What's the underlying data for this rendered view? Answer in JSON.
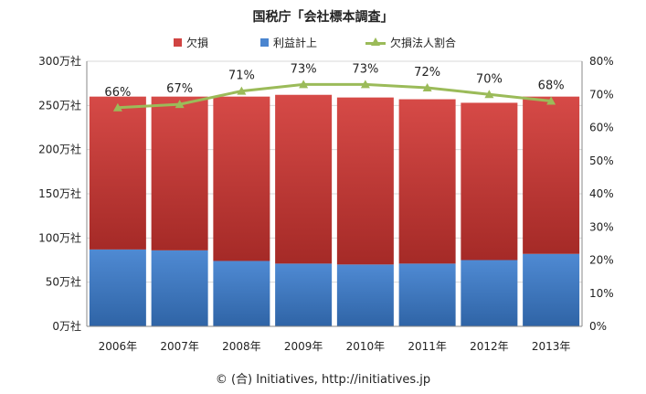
{
  "title": "国税庁「会社標本調査」",
  "footer": "© (合) Initiatives, http://initiatives.jp",
  "colors": {
    "loss": "#d04442",
    "loss_dark": "#a12522",
    "profit": "#4a85cf",
    "profit_dark": "#2c5f9f",
    "ratio": "#9bbb59",
    "grid": "#d9d9d9",
    "axis": "#888888"
  },
  "legend": [
    {
      "label": "欠損",
      "kind": "bar",
      "color": "#d04442"
    },
    {
      "label": "利益計上",
      "kind": "bar",
      "color": "#4a85cf"
    },
    {
      "label": "欠損法人割合",
      "kind": "line",
      "color": "#9bbb59"
    }
  ],
  "chart_data": {
    "type": "bar",
    "stacked": true,
    "categories": [
      "2006年",
      "2007年",
      "2008年",
      "2009年",
      "2010年",
      "2011年",
      "2012年",
      "2013年"
    ],
    "series": [
      {
        "name": "利益計上",
        "axis": "left",
        "values": [
          87,
          86,
          74,
          71,
          70,
          71,
          75,
          82
        ]
      },
      {
        "name": "欠損",
        "axis": "left",
        "values": [
          173,
          174,
          186,
          191,
          189,
          186,
          178,
          178
        ]
      },
      {
        "name": "欠損法人割合",
        "axis": "right",
        "type": "line",
        "values": [
          66,
          67,
          71,
          73,
          73,
          72,
          70,
          68
        ]
      }
    ],
    "data_labels": [
      "66%",
      "67%",
      "71%",
      "73%",
      "73%",
      "72%",
      "70%",
      "68%"
    ],
    "ylim": [
      0,
      300
    ],
    "yticks": [
      "0万社",
      "50万社",
      "100万社",
      "150万社",
      "200万社",
      "250万社",
      "300万社"
    ],
    "y2lim": [
      0,
      80
    ],
    "y2ticks": [
      "0%",
      "10%",
      "20%",
      "30%",
      "40%",
      "50%",
      "60%",
      "70%",
      "80%"
    ],
    "grid": true,
    "legend_position": "top"
  }
}
